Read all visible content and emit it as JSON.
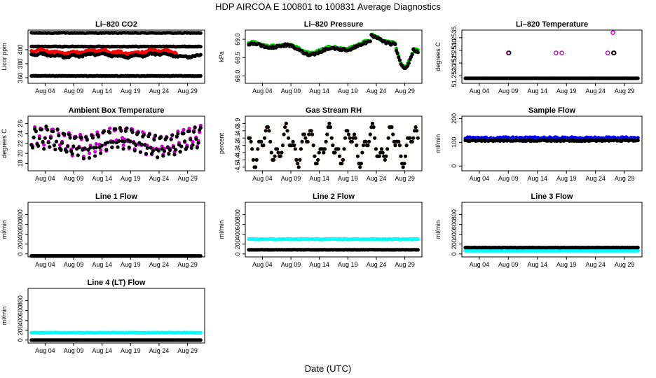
{
  "figure": {
    "title": "HDP    AIRCOA E    100801 to 100831    Average Diagnostics",
    "xlabel": "Date (UTC)"
  },
  "x_ticks": [
    "Aug 04",
    "Aug 09",
    "Aug 14",
    "Aug 19",
    "Aug 24",
    "Aug 29"
  ],
  "x_tick_days": [
    4,
    9,
    14,
    19,
    24,
    29
  ],
  "x_range": [
    1,
    32
  ],
  "chart_data": [
    {
      "type": "scatter",
      "title": "Li–820 CO2",
      "ylabel": "Licor ppm",
      "ylim": [
        352,
        428
      ],
      "yticks": [
        360,
        380,
        400
      ],
      "series": [
        {
          "name": "upper band",
          "color": "#000000",
          "base": 424,
          "amp": 0.4,
          "noise": 0.4,
          "pattern": "flat"
        },
        {
          "name": "mid band",
          "color": "#000000",
          "base": 404.5,
          "amp": 0.4,
          "noise": 0.4,
          "pattern": "flat"
        },
        {
          "name": "red CO2",
          "color": "#ff0000",
          "base": 397,
          "amp": 3,
          "noise": 1.2,
          "pattern": "co2",
          "end": 27
        },
        {
          "name": "black CO2",
          "color": "#000000",
          "base": 392,
          "amp": 3,
          "noise": 1.2,
          "pattern": "co2"
        },
        {
          "name": "lower band",
          "color": "#000000",
          "base": 362.5,
          "amp": 0.4,
          "noise": 0.4,
          "pattern": "flat"
        }
      ]
    },
    {
      "type": "scatter",
      "title": "Li–820 Pressure",
      "ylabel": "kPa",
      "ylim": [
        67.8,
        69.25
      ],
      "yticks": [
        "68.0",
        "68.5",
        "69.0"
      ],
      "series": [
        {
          "name": "green",
          "color": "#00cc00",
          "base": 68.78,
          "amp": 0.2,
          "noise": 0.03,
          "pattern": "pressure"
        },
        {
          "name": "black",
          "color": "#000000",
          "base": 68.75,
          "amp": 0.2,
          "noise": 0.03,
          "pattern": "pressure"
        }
      ]
    },
    {
      "type": "scatter",
      "title": "Li–820 Temperature",
      "ylabel": "degrees C",
      "ylim": [
        51.2517,
        51.2538
      ],
      "yticks": [
        "51.2520",
        "51.2525",
        "51.2530",
        "51.2535"
      ],
      "series": [
        {
          "name": "black",
          "color": "#000000",
          "base": 51.2519,
          "amp": 0,
          "noise": 0,
          "pattern": "flat"
        }
      ],
      "outliers": [
        {
          "x": 9,
          "y": 51.2529,
          "color": "#cc00cc"
        },
        {
          "x": 9.1,
          "y": 51.2529,
          "color": "#000000"
        },
        {
          "x": 17.2,
          "y": 51.2529,
          "color": "#cc00cc"
        },
        {
          "x": 18.2,
          "y": 51.2529,
          "color": "#cc00cc"
        },
        {
          "x": 26.1,
          "y": 51.2529,
          "color": "#cc00cc"
        },
        {
          "x": 27.1,
          "y": 51.2529,
          "color": "#000000"
        },
        {
          "x": 27.2,
          "y": 51.2529,
          "color": "#000000"
        },
        {
          "x": 27.0,
          "y": 51.2537,
          "color": "#cc00cc"
        }
      ]
    },
    {
      "type": "scatter",
      "title": "Ambient Box Temperature",
      "ylabel": "degrees C",
      "ylim": [
        16.5,
        27.5
      ],
      "yticks": [
        18,
        20,
        22,
        24,
        26
      ],
      "series": [
        {
          "name": "magenta",
          "color": "#cc00cc",
          "base": 22.5,
          "amp": 3,
          "noise": 0.4,
          "pattern": "diurnal"
        },
        {
          "name": "black",
          "color": "#000000",
          "base": 22.3,
          "amp": 3,
          "noise": 0.4,
          "pattern": "diurnal"
        }
      ]
    },
    {
      "type": "scatter",
      "title": "Gas Stream RH",
      "ylabel": "percent",
      "ylim": [
        -4.55,
        -3.8
      ],
      "yticks": [
        "-4.5",
        "-4.4",
        "-4.3",
        "-4.2",
        "-4.1",
        "-4.0",
        "-3.9"
      ],
      "series": [
        {
          "name": "orange",
          "color": "#ffa500",
          "base": -4.2,
          "amp": 0.3,
          "noise": 0,
          "pattern": "rh",
          "step": 0.05
        },
        {
          "name": "black",
          "color": "#000000",
          "base": -4.2,
          "amp": 0.3,
          "noise": 0,
          "pattern": "rh",
          "step": 0.05
        }
      ]
    },
    {
      "type": "scatter",
      "title": "Sample Flow",
      "ylabel": "ml/min",
      "ylim": [
        -20,
        210
      ],
      "yticks": [
        0,
        100,
        200
      ],
      "series": [
        {
          "name": "blue",
          "color": "#0000ff",
          "base": 118,
          "amp": 0,
          "noise": 4,
          "pattern": "flat"
        },
        {
          "name": "black",
          "color": "#000000",
          "base": 108,
          "amp": 0,
          "noise": 3,
          "pattern": "flat"
        }
      ]
    },
    {
      "type": "scatter",
      "title": "Line 1 Flow",
      "ylabel": "ml/min",
      "ylim": [
        -60,
        1050
      ],
      "yticks": [
        0,
        200,
        400,
        600,
        800
      ],
      "series": [
        {
          "name": "black",
          "color": "#000000",
          "base": -40,
          "amp": 0,
          "noise": 0,
          "pattern": "flat"
        }
      ]
    },
    {
      "type": "scatter",
      "title": "Line 2 Flow",
      "ylabel": "ml/min",
      "ylim": [
        -60,
        1050
      ],
      "yticks": [
        0,
        200,
        400,
        600,
        800
      ],
      "series": [
        {
          "name": "cyan",
          "color": "#00ffff",
          "base": 300,
          "amp": 0,
          "noise": 6,
          "pattern": "flat"
        },
        {
          "name": "black",
          "color": "#000000",
          "base": 85,
          "amp": 0,
          "noise": 2,
          "pattern": "flat"
        }
      ]
    },
    {
      "type": "scatter",
      "title": "Line 3 Flow",
      "ylabel": "ml/min",
      "ylim": [
        -60,
        1050
      ],
      "yticks": [
        0,
        200,
        400,
        600,
        800
      ],
      "series": [
        {
          "name": "cyan",
          "color": "#00ffff",
          "base": 65,
          "amp": 0,
          "noise": 2,
          "pattern": "flat"
        },
        {
          "name": "black",
          "color": "#000000",
          "base": 130,
          "amp": 0,
          "noise": 2,
          "pattern": "flat"
        }
      ]
    },
    {
      "type": "scatter",
      "title": "Line 4 (LT) Flow",
      "ylabel": "ml/min",
      "ylim": [
        -60,
        1050
      ],
      "yticks": [
        0,
        200,
        400,
        600,
        800
      ],
      "series": [
        {
          "name": "cyan",
          "color": "#00ffff",
          "base": 150,
          "amp": 0,
          "noise": 3,
          "pattern": "flat"
        },
        {
          "name": "black",
          "color": "#000000",
          "base": 0,
          "amp": 0,
          "noise": 0,
          "pattern": "flat"
        }
      ]
    }
  ]
}
